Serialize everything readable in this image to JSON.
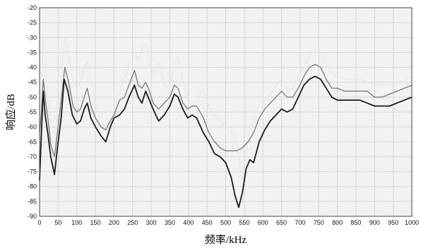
{
  "chart_data": {
    "type": "line",
    "title": "",
    "xlabel": "频率/kHz",
    "ylabel": "响应/dB",
    "xlim": [
      0,
      1000
    ],
    "ylim": [
      -90,
      -20
    ],
    "x_ticks": [
      0,
      50,
      100,
      150,
      200,
      250,
      300,
      350,
      400,
      450,
      500,
      550,
      600,
      650,
      700,
      750,
      800,
      850,
      900,
      950,
      1000
    ],
    "y_ticks": [
      -20,
      -25,
      -30,
      -35,
      -40,
      -45,
      -50,
      -55,
      -60,
      -65,
      -70,
      -75,
      -80,
      -85,
      -90
    ],
    "grid": true,
    "legend": "none",
    "series": [
      {
        "color": "#e8e8e8",
        "points": [
          [
            0,
            -58
          ],
          [
            5,
            -45
          ],
          [
            10,
            -29
          ],
          [
            15,
            -40
          ],
          [
            22,
            -50
          ],
          [
            30,
            -64
          ],
          [
            40,
            -66
          ],
          [
            50,
            -55
          ],
          [
            60,
            -42
          ],
          [
            68,
            -30
          ],
          [
            78,
            -37
          ],
          [
            90,
            -45
          ],
          [
            100,
            -47
          ],
          [
            110,
            -45
          ],
          [
            120,
            -40
          ],
          [
            128,
            -38
          ],
          [
            138,
            -45
          ],
          [
            150,
            -52
          ],
          [
            165,
            -58
          ],
          [
            178,
            -60
          ],
          [
            190,
            -58
          ],
          [
            200,
            -57
          ],
          [
            215,
            -48
          ],
          [
            225,
            -44
          ],
          [
            235,
            -42
          ],
          [
            245,
            -37
          ],
          [
            255,
            -35
          ],
          [
            265,
            -38
          ],
          [
            275,
            -34
          ],
          [
            285,
            -32
          ],
          [
            295,
            -37
          ],
          [
            305,
            -42
          ],
          [
            320,
            -38
          ],
          [
            335,
            -46
          ],
          [
            350,
            -47
          ],
          [
            362,
            -38
          ],
          [
            372,
            -36
          ],
          [
            385,
            -44
          ],
          [
            398,
            -50
          ],
          [
            410,
            -50
          ],
          [
            422,
            -50
          ],
          [
            440,
            -48
          ],
          [
            455,
            -53
          ],
          [
            470,
            -56
          ],
          [
            485,
            -58
          ],
          [
            500,
            -60
          ],
          [
            515,
            -62
          ],
          [
            528,
            -65
          ],
          [
            538,
            -72
          ],
          [
            545,
            -78
          ],
          [
            552,
            -70
          ],
          [
            562,
            -62
          ],
          [
            575,
            -58
          ],
          [
            590,
            -53
          ],
          [
            605,
            -51
          ],
          [
            620,
            -49
          ],
          [
            635,
            -46
          ],
          [
            650,
            -44
          ],
          [
            665,
            -48
          ],
          [
            680,
            -47
          ],
          [
            695,
            -43
          ],
          [
            710,
            -40
          ],
          [
            725,
            -36
          ],
          [
            740,
            -34
          ],
          [
            755,
            -35
          ],
          [
            770,
            -39
          ],
          [
            785,
            -42
          ],
          [
            800,
            -43
          ],
          [
            820,
            -44
          ],
          [
            840,
            -44
          ],
          [
            860,
            -44
          ],
          [
            880,
            -45
          ],
          [
            900,
            -46
          ],
          [
            920,
            -46
          ],
          [
            940,
            -46
          ],
          [
            960,
            -45
          ],
          [
            980,
            -44
          ],
          [
            1000,
            -43
          ]
        ]
      },
      {
        "color": "#6e6e6e",
        "points": [
          [
            0,
            -62
          ],
          [
            5,
            -55
          ],
          [
            10,
            -44
          ],
          [
            15,
            -50
          ],
          [
            22,
            -57
          ],
          [
            30,
            -66
          ],
          [
            40,
            -70
          ],
          [
            50,
            -60
          ],
          [
            60,
            -49
          ],
          [
            68,
            -40
          ],
          [
            78,
            -45
          ],
          [
            90,
            -53
          ],
          [
            100,
            -55
          ],
          [
            110,
            -54
          ],
          [
            120,
            -50
          ],
          [
            128,
            -47
          ],
          [
            138,
            -53
          ],
          [
            150,
            -57
          ],
          [
            165,
            -60
          ],
          [
            178,
            -61
          ],
          [
            190,
            -58
          ],
          [
            200,
            -56
          ],
          [
            215,
            -51
          ],
          [
            228,
            -50
          ],
          [
            240,
            -46
          ],
          [
            255,
            -41
          ],
          [
            265,
            -46
          ],
          [
            275,
            -47
          ],
          [
            285,
            -45
          ],
          [
            295,
            -48
          ],
          [
            305,
            -52
          ],
          [
            320,
            -54
          ],
          [
            335,
            -52
          ],
          [
            350,
            -50
          ],
          [
            362,
            -46
          ],
          [
            372,
            -47
          ],
          [
            385,
            -52
          ],
          [
            398,
            -54
          ],
          [
            410,
            -53
          ],
          [
            422,
            -53
          ],
          [
            440,
            -57
          ],
          [
            455,
            -62
          ],
          [
            470,
            -65
          ],
          [
            485,
            -67
          ],
          [
            500,
            -68
          ],
          [
            515,
            -68
          ],
          [
            530,
            -68
          ],
          [
            545,
            -67
          ],
          [
            560,
            -65
          ],
          [
            575,
            -62
          ],
          [
            590,
            -57
          ],
          [
            605,
            -54
          ],
          [
            620,
            -52
          ],
          [
            635,
            -50
          ],
          [
            650,
            -48
          ],
          [
            665,
            -50
          ],
          [
            680,
            -50
          ],
          [
            695,
            -47
          ],
          [
            710,
            -43
          ],
          [
            725,
            -40
          ],
          [
            740,
            -39
          ],
          [
            755,
            -40
          ],
          [
            770,
            -44
          ],
          [
            785,
            -47
          ],
          [
            800,
            -47
          ],
          [
            820,
            -48
          ],
          [
            840,
            -48
          ],
          [
            860,
            -48
          ],
          [
            880,
            -48
          ],
          [
            900,
            -50
          ],
          [
            920,
            -50
          ],
          [
            940,
            -49
          ],
          [
            960,
            -48
          ],
          [
            980,
            -47
          ],
          [
            1000,
            -46
          ]
        ]
      },
      {
        "color": "#1a1a1a",
        "points": [
          [
            0,
            -78
          ],
          [
            5,
            -62
          ],
          [
            10,
            -48
          ],
          [
            15,
            -56
          ],
          [
            22,
            -62
          ],
          [
            30,
            -70
          ],
          [
            40,
            -76
          ],
          [
            48,
            -67
          ],
          [
            58,
            -57
          ],
          [
            66,
            -44
          ],
          [
            76,
            -48
          ],
          [
            88,
            -56
          ],
          [
            100,
            -59
          ],
          [
            110,
            -58
          ],
          [
            120,
            -54
          ],
          [
            128,
            -52
          ],
          [
            138,
            -57
          ],
          [
            150,
            -60
          ],
          [
            165,
            -63
          ],
          [
            178,
            -65
          ],
          [
            190,
            -60
          ],
          [
            200,
            -57
          ],
          [
            215,
            -56
          ],
          [
            228,
            -54
          ],
          [
            240,
            -50
          ],
          [
            255,
            -46
          ],
          [
            265,
            -50
          ],
          [
            275,
            -52
          ],
          [
            285,
            -48
          ],
          [
            295,
            -51
          ],
          [
            305,
            -54
          ],
          [
            320,
            -58
          ],
          [
            335,
            -56
          ],
          [
            350,
            -53
          ],
          [
            362,
            -49
          ],
          [
            372,
            -50
          ],
          [
            385,
            -54
          ],
          [
            398,
            -57
          ],
          [
            410,
            -56
          ],
          [
            422,
            -57
          ],
          [
            440,
            -62
          ],
          [
            455,
            -65
          ],
          [
            470,
            -69
          ],
          [
            485,
            -70
          ],
          [
            500,
            -72
          ],
          [
            515,
            -77
          ],
          [
            525,
            -83
          ],
          [
            535,
            -87
          ],
          [
            545,
            -82
          ],
          [
            555,
            -74
          ],
          [
            565,
            -71
          ],
          [
            575,
            -72
          ],
          [
            590,
            -65
          ],
          [
            605,
            -61
          ],
          [
            620,
            -58
          ],
          [
            635,
            -56
          ],
          [
            650,
            -54
          ],
          [
            665,
            -55
          ],
          [
            680,
            -54
          ],
          [
            695,
            -50
          ],
          [
            710,
            -46
          ],
          [
            725,
            -44
          ],
          [
            740,
            -43
          ],
          [
            755,
            -44
          ],
          [
            770,
            -47
          ],
          [
            785,
            -50
          ],
          [
            800,
            -51
          ],
          [
            820,
            -51
          ],
          [
            840,
            -51
          ],
          [
            860,
            -51
          ],
          [
            880,
            -52
          ],
          [
            900,
            -53
          ],
          [
            920,
            -53
          ],
          [
            940,
            -53
          ],
          [
            960,
            -52
          ],
          [
            980,
            -51
          ],
          [
            1000,
            -50
          ]
        ]
      }
    ]
  }
}
